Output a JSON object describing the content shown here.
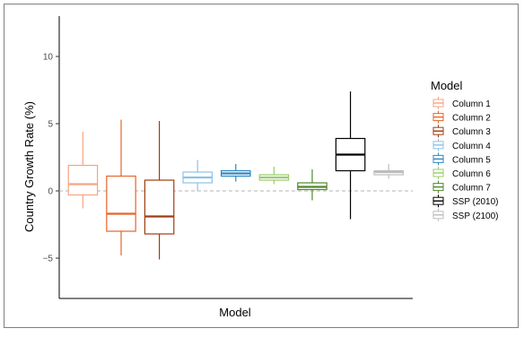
{
  "chart_data": {
    "type": "boxplot",
    "title": "",
    "xlabel": "Model",
    "ylabel": "Country Growth Rate (%)",
    "ylim": [
      -8,
      13
    ],
    "yticks": [
      -5,
      0,
      5,
      10
    ],
    "ytick_labels": [
      "−5",
      "0",
      "5",
      "10"
    ],
    "reference_line": 0,
    "grid": false,
    "legend": {
      "title": "Model",
      "placement": "right"
    },
    "series": [
      {
        "name": "Column 1",
        "color": "#F4A582",
        "lower_whisker": -1.3,
        "q1": -0.3,
        "median": 0.5,
        "q3": 1.9,
        "upper_whisker": 4.4
      },
      {
        "name": "Column 2",
        "color": "#E6652A",
        "lower_whisker": -4.8,
        "q1": -3.0,
        "median": -1.7,
        "q3": 1.1,
        "upper_whisker": 5.3
      },
      {
        "name": "Column 3",
        "color": "#9E3D0F",
        "lower_whisker": -5.1,
        "q1": -3.2,
        "median": -1.9,
        "q3": 0.8,
        "upper_whisker": 5.2
      },
      {
        "name": "Column 4",
        "color": "#8EC1E6",
        "lower_whisker": 0.0,
        "q1": 0.6,
        "median": 1.0,
        "q3": 1.4,
        "upper_whisker": 2.3
      },
      {
        "name": "Column 5",
        "color": "#2E86C1",
        "lower_whisker": 0.7,
        "q1": 1.1,
        "median": 1.3,
        "q3": 1.5,
        "upper_whisker": 2.0
      },
      {
        "name": "Column 6",
        "color": "#9ACD6B",
        "lower_whisker": 0.5,
        "q1": 0.8,
        "median": 1.0,
        "q3": 1.2,
        "upper_whisker": 1.8
      },
      {
        "name": "Column 7",
        "color": "#4F8A2B",
        "lower_whisker": -0.7,
        "q1": 0.1,
        "median": 0.3,
        "q3": 0.6,
        "upper_whisker": 1.6
      },
      {
        "name": "SSP (2010)",
        "color": "#000000",
        "lower_whisker": -2.1,
        "q1": 1.5,
        "median": 2.7,
        "q3": 3.9,
        "upper_whisker": 7.4
      },
      {
        "name": "SSP (2100)",
        "color": "#BDBDBD",
        "lower_whisker": 0.9,
        "q1": 1.2,
        "median": 1.4,
        "q3": 1.5,
        "upper_whisker": 2.0
      }
    ]
  }
}
